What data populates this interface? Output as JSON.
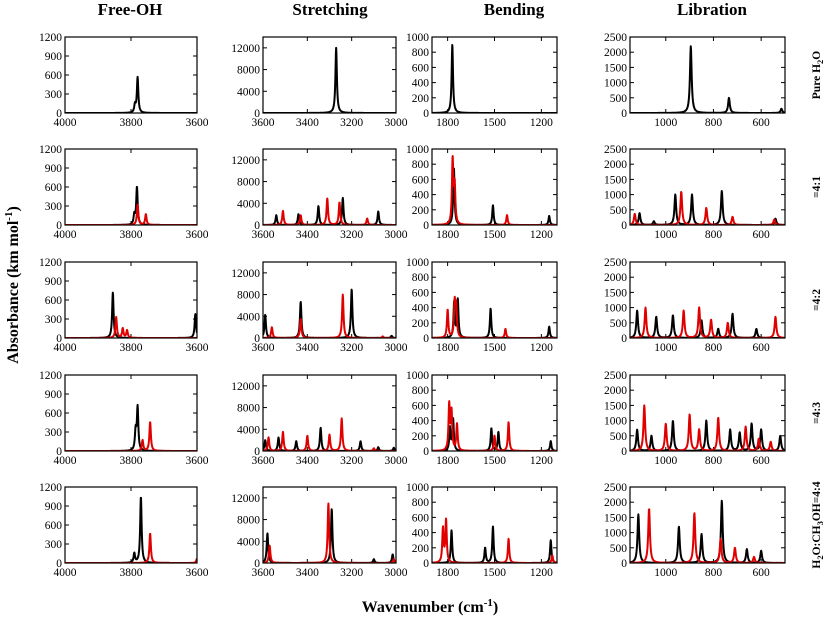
{
  "figure": {
    "ylabel": "Absorbance (km mol",
    "ylabel_sup": "-1",
    "ylabel_end": ")",
    "xlabel": "Wavenumber (cm",
    "xlabel_sup": "-1",
    "xlabel_end": ")"
  },
  "columns": [
    {
      "title": "Free-OH",
      "xlim": [
        4000,
        3600
      ],
      "xticks": [
        4000,
        3800,
        3600
      ],
      "ylim": [
        0,
        1200
      ],
      "yticks": [
        0,
        300,
        600,
        900,
        1200
      ]
    },
    {
      "title": "Stretching",
      "xlim": [
        3600,
        3000
      ],
      "xticks": [
        3600,
        3400,
        3200,
        3000
      ],
      "ylim": [
        0,
        14000
      ],
      "yticks": [
        0,
        4000,
        8000,
        12000
      ]
    },
    {
      "title": "Bending",
      "xlim": [
        1900,
        1100
      ],
      "xticks": [
        1800,
        1500,
        1200
      ],
      "ylim": [
        0,
        1000
      ],
      "yticks": [
        0,
        200,
        400,
        600,
        800,
        1000
      ]
    },
    {
      "title": "Libration",
      "xlim": [
        1150,
        500
      ],
      "xticks": [
        1000,
        800,
        600
      ],
      "ylim": [
        0,
        2500
      ],
      "yticks": [
        0,
        500,
        1000,
        1500,
        2000,
        2500
      ]
    }
  ],
  "rows": [
    {
      "label_parts": [
        "Pure H",
        "2",
        "O"
      ]
    },
    {
      "label_parts": [
        "=4:1"
      ]
    },
    {
      "label_parts": [
        "=4:2"
      ]
    },
    {
      "label_parts": [
        "=4:3"
      ]
    },
    {
      "label_parts": [
        "H",
        "2",
        "O:CH",
        "3",
        "OH=4:4"
      ]
    }
  ],
  "chart_data": {
    "type": "line",
    "description_of_units": "x: wavenumber (cm-1), y: absorbance (km mol-1); spectra built from Lorentzian peaks [center, height]",
    "series_colors": {
      "black": "#000000",
      "red": "#e00000"
    },
    "panels": [
      [
        {
          "black": [
            [
              3780,
              560
            ],
            [
              3788,
              120
            ]
          ],
          "red": []
        },
        {
          "black": [
            [
              3270,
              12000
            ]
          ],
          "red": []
        },
        {
          "black": [
            [
              1770,
              900
            ]
          ],
          "red": []
        },
        {
          "black": [
            [
              895,
              2200
            ],
            [
              735,
              500
            ],
            [
              515,
              140
            ]
          ],
          "red": []
        }
      ],
      [
        {
          "black": [
            [
              3782,
              600
            ],
            [
              3790,
              150
            ]
          ],
          "red": [
            [
              3780,
              320
            ],
            [
              3755,
              170
            ]
          ]
        },
        {
          "black": [
            [
              3540,
              1800
            ],
            [
              3440,
              2000
            ],
            [
              3350,
              3500
            ],
            [
              3240,
              5000
            ],
            [
              3080,
              2500
            ]
          ],
          "red": [
            [
              3510,
              2600
            ],
            [
              3430,
              1800
            ],
            [
              3310,
              4900
            ],
            [
              3255,
              4200
            ],
            [
              3130,
              1200
            ]
          ]
        },
        {
          "black": [
            [
              1760,
              760
            ],
            [
              1510,
              260
            ],
            [
              1150,
              120
            ]
          ],
          "red": [
            [
              1768,
              850
            ],
            [
              1755,
              500
            ],
            [
              1420,
              130
            ]
          ]
        },
        {
          "black": [
            [
              1110,
              390
            ],
            [
              960,
              1000
            ],
            [
              890,
              1000
            ],
            [
              765,
              1120
            ],
            [
              540,
              210
            ],
            [
              1050,
              120
            ]
          ],
          "red": [
            [
              1130,
              370
            ],
            [
              935,
              1100
            ],
            [
              830,
              560
            ],
            [
              720,
              270
            ],
            [
              545,
              180
            ]
          ]
        }
      ],
      [
        {
          "black": [
            [
              3855,
              720
            ],
            [
              3605,
              380
            ]
          ],
          "red": [
            [
              3845,
              330
            ],
            [
              3825,
              150
            ],
            [
              3812,
              120
            ]
          ]
        },
        {
          "black": [
            [
              3590,
              4300
            ],
            [
              3430,
              6700
            ],
            [
              3200,
              9000
            ],
            [
              3020,
              400
            ]
          ],
          "red": [
            [
              3560,
              2000
            ],
            [
              3430,
              3500
            ],
            [
              3240,
              8000
            ],
            [
              3060,
              300
            ]
          ]
        },
        {
          "black": [
            [
              1758,
              470
            ],
            [
              1735,
              500
            ],
            [
              1525,
              390
            ],
            [
              1150,
              150
            ]
          ],
          "red": [
            [
              1800,
              370
            ],
            [
              1755,
              450
            ],
            [
              1745,
              400
            ],
            [
              1430,
              120
            ]
          ]
        },
        {
          "black": [
            [
              1120,
              900
            ],
            [
              1040,
              700
            ],
            [
              970,
              750
            ],
            [
              850,
              580
            ],
            [
              720,
              800
            ],
            [
              780,
              300
            ],
            [
              620,
              300
            ]
          ],
          "red": [
            [
              1085,
              1000
            ],
            [
              925,
              900
            ],
            [
              860,
              1000
            ],
            [
              810,
              600
            ],
            [
              740,
              500
            ],
            [
              540,
              700
            ]
          ]
        }
      ],
      [
        {
          "black": [
            [
              3780,
              680
            ],
            [
              3786,
              300
            ]
          ],
          "red": [
            [
              3742,
              460
            ],
            [
              3765,
              170
            ]
          ]
        },
        {
          "black": [
            [
              3590,
              2000
            ],
            [
              3530,
              2500
            ],
            [
              3450,
              1800
            ],
            [
              3340,
              4300
            ],
            [
              3160,
              1800
            ],
            [
              3080,
              700
            ],
            [
              3010,
              600
            ]
          ],
          "red": [
            [
              3575,
              2500
            ],
            [
              3510,
              3500
            ],
            [
              3400,
              2800
            ],
            [
              3300,
              3000
            ],
            [
              3245,
              6000
            ],
            [
              3100,
              500
            ]
          ]
        },
        {
          "black": [
            [
              1785,
              300
            ],
            [
              1765,
              420
            ],
            [
              1520,
              300
            ],
            [
              1475,
              250
            ],
            [
              1140,
              130
            ]
          ],
          "red": [
            [
              1790,
              600
            ],
            [
              1775,
              500
            ],
            [
              1740,
              350
            ],
            [
              1500,
              200
            ],
            [
              1410,
              380
            ]
          ]
        },
        {
          "black": [
            [
              1120,
              700
            ],
            [
              1060,
              500
            ],
            [
              970,
              1000
            ],
            [
              830,
              1000
            ],
            [
              730,
              700
            ],
            [
              690,
              600
            ],
            [
              640,
              900
            ],
            [
              600,
              700
            ],
            [
              520,
              500
            ]
          ],
          "red": [
            [
              1090,
              1500
            ],
            [
              1000,
              900
            ],
            [
              900,
              1200
            ],
            [
              860,
              700
            ],
            [
              780,
              1100
            ],
            [
              665,
              800
            ],
            [
              610,
              400
            ],
            [
              560,
              300
            ]
          ]
        }
      ],
      [
        {
          "black": [
            [
              3770,
              1050
            ],
            [
              3790,
              150
            ]
          ],
          "red": [
            [
              3742,
              470
            ],
            [
              3600,
              70
            ]
          ]
        },
        {
          "black": [
            [
              3580,
              5500
            ],
            [
              3290,
              10000
            ],
            [
              3100,
              700
            ],
            [
              3015,
              1600
            ]
          ],
          "red": [
            [
              3570,
              3200
            ],
            [
              3305,
              11000
            ],
            [
              3010,
              700
            ]
          ]
        },
        {
          "black": [
            [
              1775,
              430
            ],
            [
              1510,
              480
            ],
            [
              1560,
              200
            ],
            [
              1140,
              300
            ]
          ],
          "red": [
            [
              1810,
              560
            ],
            [
              1830,
              450
            ],
            [
              1410,
              320
            ],
            [
              1130,
              100
            ]
          ]
        },
        {
          "black": [
            [
              1115,
              1600
            ],
            [
              945,
              1200
            ],
            [
              850,
              950
            ],
            [
              765,
              2050
            ],
            [
              660,
              450
            ],
            [
              600,
              400
            ]
          ],
          "red": [
            [
              1070,
              1800
            ],
            [
              880,
              1650
            ],
            [
              770,
              800
            ],
            [
              710,
              500
            ],
            [
              630,
              200
            ]
          ]
        }
      ]
    ]
  }
}
